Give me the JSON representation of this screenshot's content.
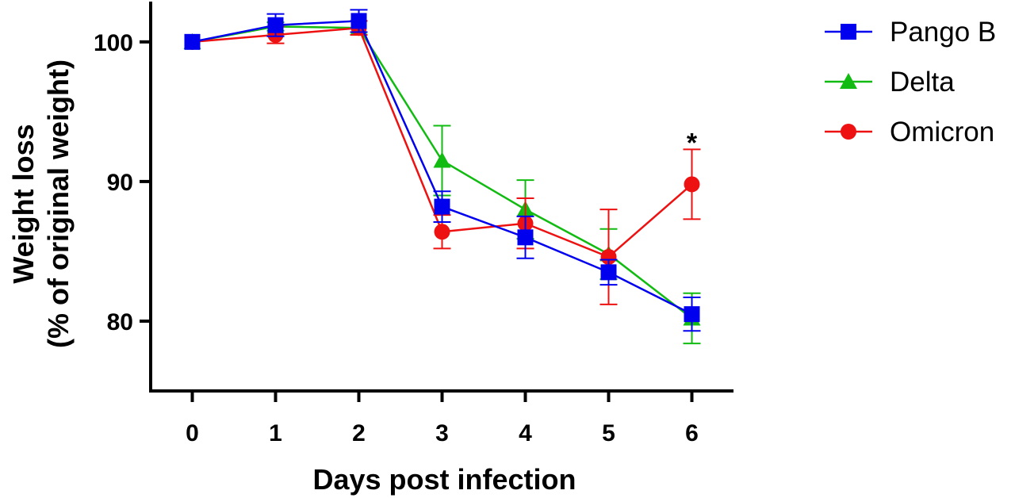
{
  "chart_data": {
    "type": "line",
    "xlabel": "Days post infection",
    "ylabel_line1": "Weight loss",
    "ylabel_line2": "(% of original weight)",
    "x": [
      0,
      1,
      2,
      3,
      4,
      5,
      6
    ],
    "xlim": [
      -0.5,
      6.5
    ],
    "ylim": [
      75,
      103
    ],
    "xticks": [
      0,
      1,
      2,
      3,
      4,
      5,
      6
    ],
    "yticks": [
      80,
      90,
      100
    ],
    "grid": false,
    "legend_position": "top-right",
    "series": [
      {
        "name": "Pango B",
        "color": "#0000ee",
        "marker": "square",
        "values": [
          100,
          101.2,
          101.5,
          88.2,
          86.0,
          83.5,
          80.5
        ],
        "err": [
          0,
          0.8,
          0.8,
          1.1,
          1.5,
          0.9,
          1.2
        ]
      },
      {
        "name": "Delta",
        "color": "#11bb11",
        "marker": "triangle",
        "values": [
          100,
          101.1,
          101.0,
          91.5,
          88.0,
          84.8,
          80.2
        ],
        "err": [
          0,
          0.3,
          0.5,
          2.5,
          2.1,
          1.8,
          1.8
        ]
      },
      {
        "name": "Omicron",
        "color": "#ee1111",
        "marker": "circle",
        "values": [
          100,
          100.5,
          101.0,
          86.4,
          87.0,
          84.6,
          89.8
        ],
        "err": [
          0,
          0.6,
          0.5,
          1.2,
          1.8,
          3.4,
          2.5
        ]
      }
    ],
    "annotations": [
      {
        "text": "*",
        "x": 6,
        "y": 93.5
      }
    ]
  }
}
